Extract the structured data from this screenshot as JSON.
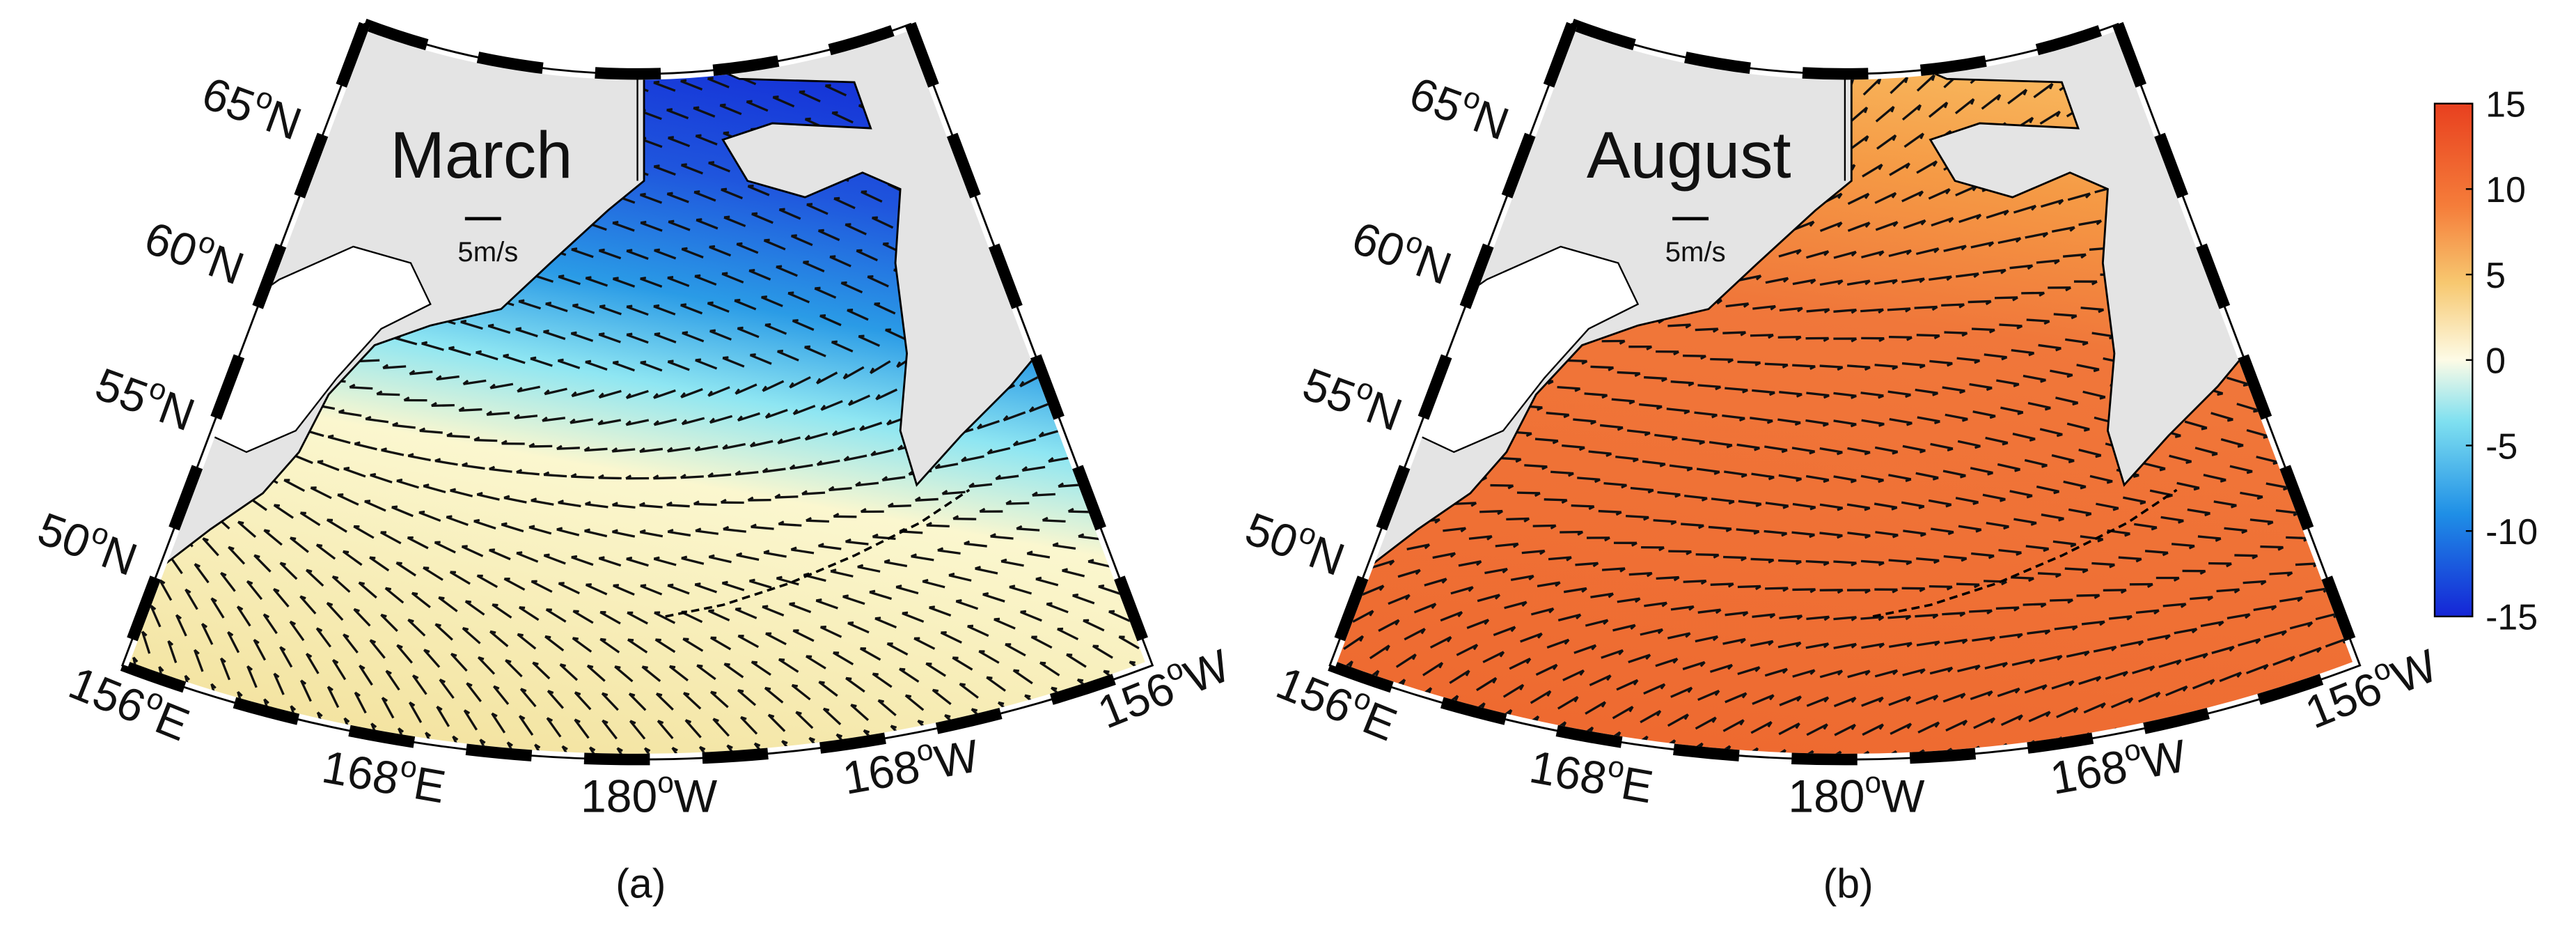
{
  "panels": [
    {
      "title": "March",
      "label": "(a)",
      "scale_label": "5m/s",
      "lat_labels": [
        {
          "num": "65",
          "sup": "o",
          "dir": "N"
        },
        {
          "num": "60",
          "sup": "o",
          "dir": "N"
        },
        {
          "num": "55",
          "sup": "o",
          "dir": "N"
        },
        {
          "num": "50",
          "sup": "o",
          "dir": "N"
        }
      ],
      "lon_labels": [
        {
          "num": "156",
          "sup": "o",
          "dir": "E"
        },
        {
          "num": "168",
          "sup": "o",
          "dir": "E"
        },
        {
          "num": "180",
          "sup": "o",
          "dir": "W"
        },
        {
          "num": "168",
          "sup": "o",
          "dir": "W"
        },
        {
          "num": "156",
          "sup": "o",
          "dir": "W"
        }
      ]
    },
    {
      "title": "August",
      "label": "(b)",
      "scale_label": "5m/s",
      "lat_labels": [
        {
          "num": "65",
          "sup": "o",
          "dir": "N"
        },
        {
          "num": "60",
          "sup": "o",
          "dir": "N"
        },
        {
          "num": "55",
          "sup": "o",
          "dir": "N"
        },
        {
          "num": "50",
          "sup": "o",
          "dir": "N"
        }
      ],
      "lon_labels": [
        {
          "num": "156",
          "sup": "o",
          "dir": "E"
        },
        {
          "num": "168",
          "sup": "o",
          "dir": "E"
        },
        {
          "num": "180",
          "sup": "o",
          "dir": "W"
        },
        {
          "num": "168",
          "sup": "o",
          "dir": "W"
        },
        {
          "num": "156",
          "sup": "o",
          "dir": "W"
        }
      ]
    }
  ],
  "colorbar": {
    "lim": [
      -15,
      15
    ],
    "ticks": [
      15,
      10,
      5,
      0,
      -5,
      -10,
      -15
    ]
  }
}
